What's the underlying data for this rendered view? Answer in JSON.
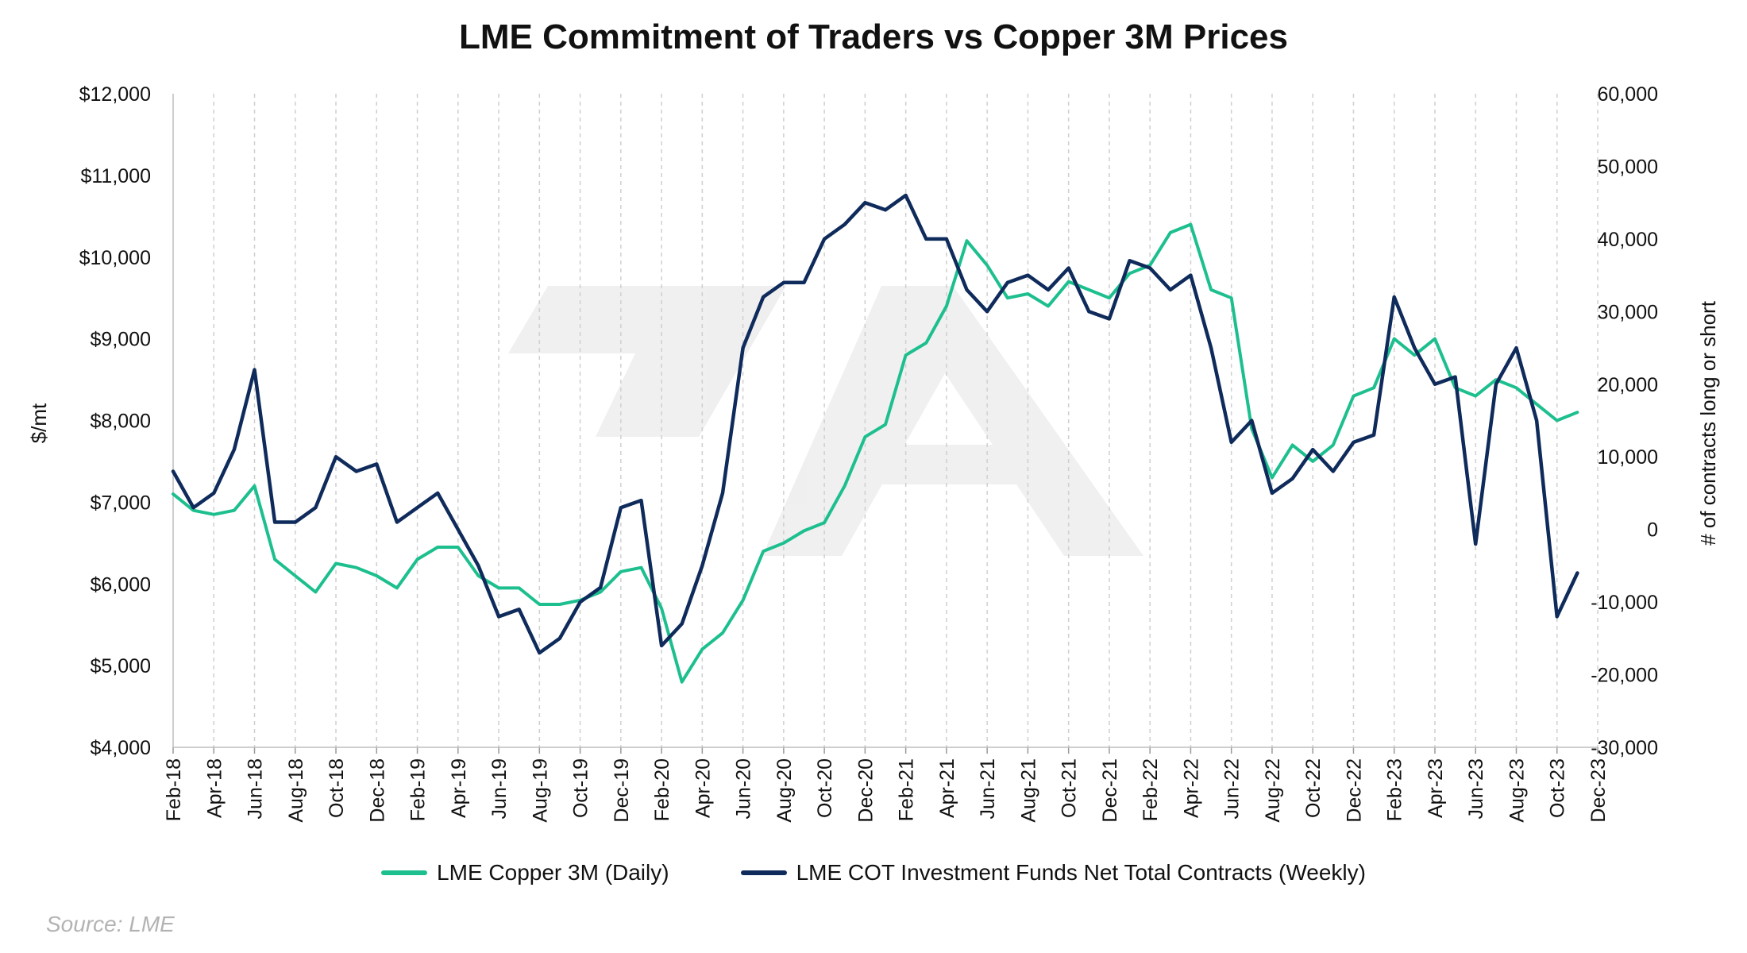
{
  "chart_data": {
    "type": "line",
    "title": "LME Commitment of Traders vs Copper 3M Prices",
    "ylabel_left": "$/mt",
    "ylabel_right": "# of contracts long or short",
    "ylim_left": [
      4000,
      12000
    ],
    "ylim_right": [
      -30000,
      60000
    ],
    "yticks_left": [
      "$4,000",
      "$5,000",
      "$6,000",
      "$7,000",
      "$8,000",
      "$9,000",
      "$10,000",
      "$11,000",
      "$12,000"
    ],
    "yticks_right": [
      "-30,000",
      "-20,000",
      "-10,000",
      "0",
      "10,000",
      "20,000",
      "30,000",
      "40,000",
      "50,000",
      "60,000"
    ],
    "x_ticks": [
      "Feb-18",
      "Apr-18",
      "Jun-18",
      "Aug-18",
      "Oct-18",
      "Dec-18",
      "Feb-19",
      "Apr-19",
      "Jun-19",
      "Aug-19",
      "Oct-19",
      "Dec-19",
      "Feb-20",
      "Apr-20",
      "Jun-20",
      "Aug-20",
      "Oct-20",
      "Dec-20",
      "Feb-21",
      "Apr-21",
      "Jun-21",
      "Aug-21",
      "Oct-21",
      "Dec-21",
      "Feb-22",
      "Apr-22",
      "Jun-22",
      "Aug-22",
      "Oct-22",
      "Dec-22",
      "Feb-23",
      "Apr-23",
      "Jun-23",
      "Aug-23",
      "Oct-23",
      "Dec-23"
    ],
    "grid": "vertical dashed",
    "legend_position": "bottom",
    "series": [
      {
        "name": "LME Copper 3M (Daily)",
        "axis": "left",
        "color": "#1dbf8e",
        "x": [
          "Feb-18",
          "Mar-18",
          "Apr-18",
          "May-18",
          "Jun-18",
          "Jul-18",
          "Aug-18",
          "Sep-18",
          "Oct-18",
          "Nov-18",
          "Dec-18",
          "Jan-19",
          "Feb-19",
          "Mar-19",
          "Apr-19",
          "May-19",
          "Jun-19",
          "Jul-19",
          "Aug-19",
          "Sep-19",
          "Oct-19",
          "Nov-19",
          "Dec-19",
          "Jan-20",
          "Feb-20",
          "Mar-20",
          "Apr-20",
          "May-20",
          "Jun-20",
          "Jul-20",
          "Aug-20",
          "Sep-20",
          "Oct-20",
          "Nov-20",
          "Dec-20",
          "Jan-21",
          "Feb-21",
          "Mar-21",
          "Apr-21",
          "May-21",
          "Jun-21",
          "Jul-21",
          "Aug-21",
          "Sep-21",
          "Oct-21",
          "Nov-21",
          "Dec-21",
          "Jan-22",
          "Feb-22",
          "Mar-22",
          "Apr-22",
          "May-22",
          "Jun-22",
          "Jul-22",
          "Aug-22",
          "Sep-22",
          "Oct-22",
          "Nov-22",
          "Dec-22",
          "Jan-23",
          "Feb-23",
          "Mar-23",
          "Apr-23",
          "May-23",
          "Jun-23",
          "Jul-23",
          "Aug-23",
          "Sep-23",
          "Oct-23",
          "Nov-23"
        ],
        "values": [
          7100,
          6900,
          6850,
          6900,
          7200,
          6300,
          6100,
          5900,
          6250,
          6200,
          6100,
          5950,
          6300,
          6450,
          6450,
          6100,
          5950,
          5950,
          5750,
          5750,
          5800,
          5900,
          6150,
          6200,
          5700,
          4800,
          5200,
          5400,
          5800,
          6400,
          6500,
          6650,
          6750,
          7200,
          7800,
          7950,
          8800,
          8950,
          9400,
          10200,
          9900,
          9500,
          9550,
          9400,
          9700,
          9600,
          9500,
          9800,
          9900,
          10300,
          10400,
          9600,
          9500,
          7900,
          7300,
          7700,
          7500,
          7700,
          8300,
          8400,
          9000,
          8800,
          9000,
          8400,
          8300,
          8500,
          8400,
          8200,
          8000,
          8100
        ]
      },
      {
        "name": "LME COT Investment Funds Net Total Contracts (Weekly)",
        "axis": "right",
        "color": "#0f2b5b",
        "x": [
          "Feb-18",
          "Mar-18",
          "Apr-18",
          "May-18",
          "Jun-18",
          "Jul-18",
          "Aug-18",
          "Sep-18",
          "Oct-18",
          "Nov-18",
          "Dec-18",
          "Jan-19",
          "Feb-19",
          "Mar-19",
          "Apr-19",
          "May-19",
          "Jun-19",
          "Jul-19",
          "Aug-19",
          "Sep-19",
          "Oct-19",
          "Nov-19",
          "Dec-19",
          "Jan-20",
          "Feb-20",
          "Mar-20",
          "Apr-20",
          "May-20",
          "Jun-20",
          "Jul-20",
          "Aug-20",
          "Sep-20",
          "Oct-20",
          "Nov-20",
          "Dec-20",
          "Jan-21",
          "Feb-21",
          "Mar-21",
          "Apr-21",
          "May-21",
          "Jun-21",
          "Jul-21",
          "Aug-21",
          "Sep-21",
          "Oct-21",
          "Nov-21",
          "Dec-21",
          "Jan-22",
          "Feb-22",
          "Mar-22",
          "Apr-22",
          "May-22",
          "Jun-22",
          "Jul-22",
          "Aug-22",
          "Sep-22",
          "Oct-22",
          "Nov-22",
          "Dec-22",
          "Jan-23",
          "Feb-23",
          "Mar-23",
          "Apr-23",
          "May-23",
          "Jun-23",
          "Jul-23",
          "Aug-23",
          "Sep-23",
          "Oct-23",
          "Nov-23"
        ],
        "values": [
          8000,
          3000,
          5000,
          11000,
          22000,
          1000,
          1000,
          3000,
          10000,
          8000,
          9000,
          1000,
          3000,
          5000,
          0,
          -5000,
          -12000,
          -11000,
          -17000,
          -15000,
          -10000,
          -8000,
          3000,
          4000,
          -16000,
          -13000,
          -5000,
          5000,
          25000,
          32000,
          34000,
          34000,
          40000,
          42000,
          45000,
          44000,
          46000,
          40000,
          40000,
          33000,
          30000,
          34000,
          35000,
          33000,
          36000,
          30000,
          29000,
          37000,
          36000,
          33000,
          35000,
          25000,
          12000,
          15000,
          5000,
          7000,
          11000,
          8000,
          12000,
          13000,
          32000,
          25000,
          20000,
          21000,
          -2000,
          20000,
          25000,
          15000,
          -12000,
          -6000
        ]
      }
    ]
  },
  "legend": {
    "copper_label": "LME Copper 3M (Daily)",
    "cot_label": "LME COT Investment Funds Net Total Contracts (Weekly)"
  },
  "source": "Source: LME"
}
